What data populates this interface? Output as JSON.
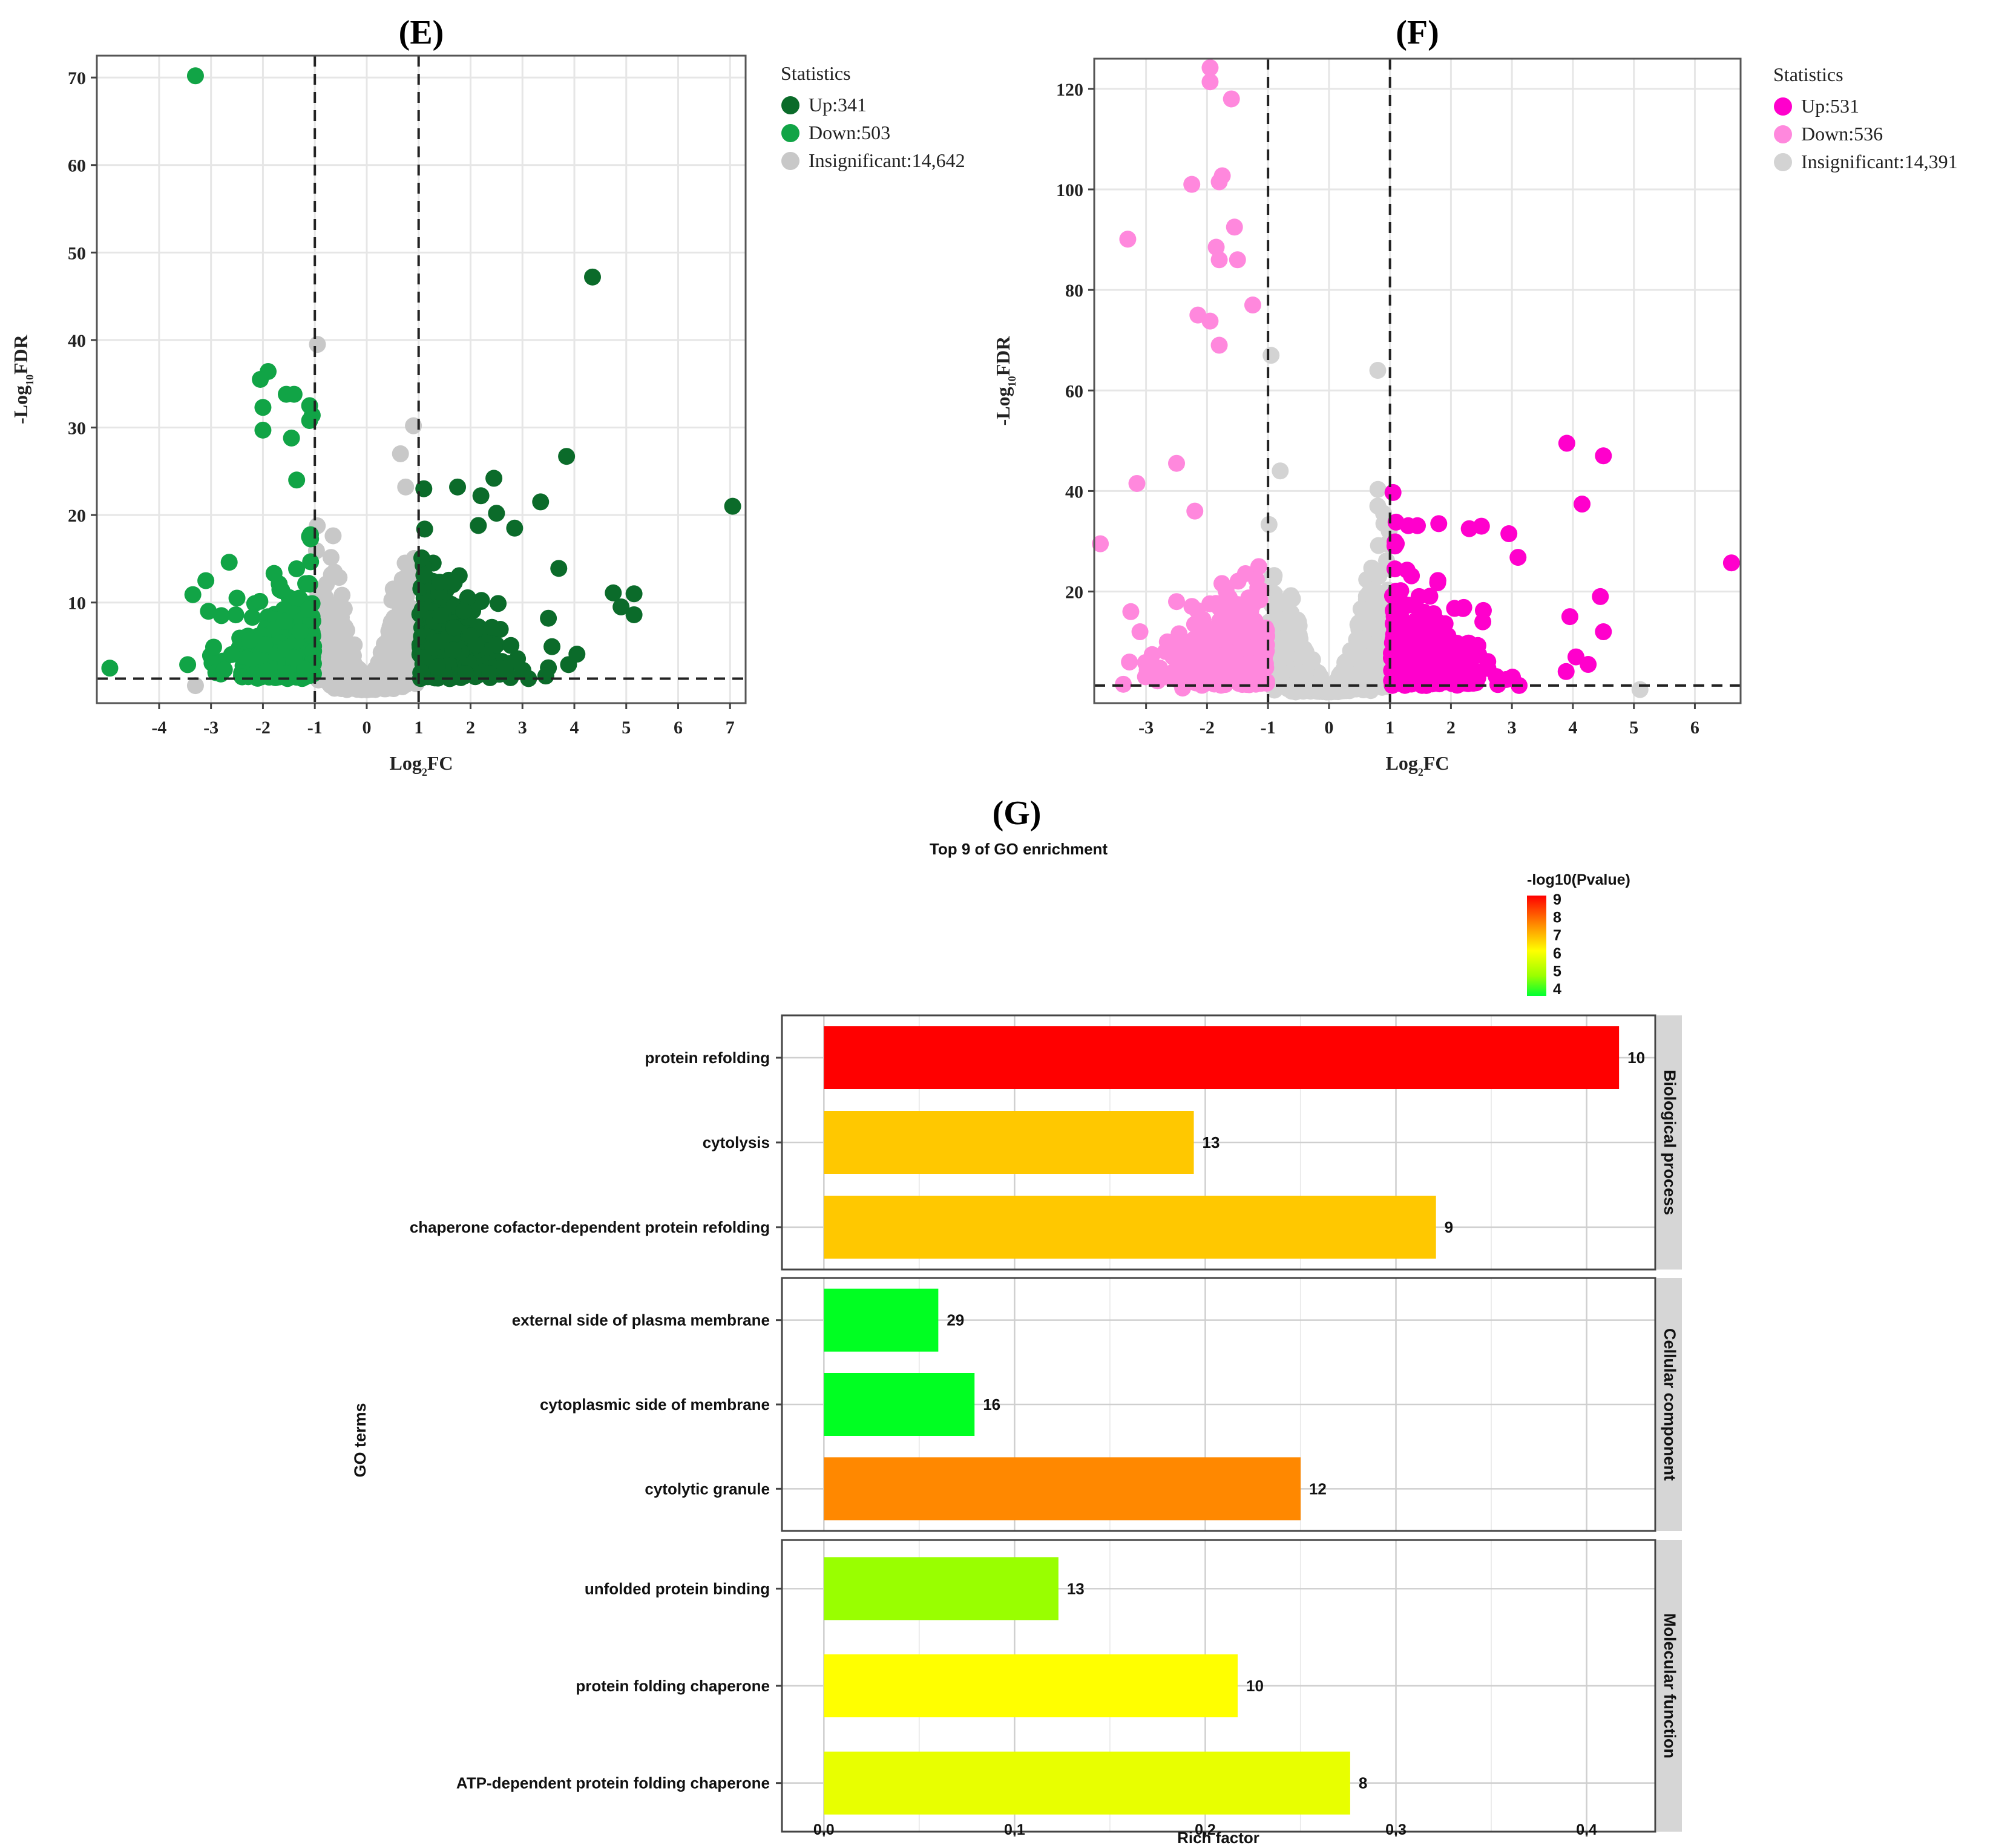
{
  "chart_data": [
    {
      "panel": "(E)",
      "type": "scatter",
      "xlabel": "Log2FC",
      "xlabel_main": "Log",
      "xlabel_sub": "2",
      "xlabel_tail": "FC",
      "ylabel": "-Log10FDR",
      "ylabel_main": "-Log",
      "ylabel_sub": "10",
      "ylabel_tail": "FDR",
      "xlim": [
        -5.2,
        7.3
      ],
      "ylim": [
        -1.5,
        72.5
      ],
      "x_ticks": [
        -4,
        -3,
        -2,
        -1,
        0,
        1,
        2,
        3,
        4,
        5,
        6,
        7
      ],
      "y_ticks": [
        10,
        20,
        30,
        40,
        50,
        60,
        70
      ],
      "fc_thresholds": [
        -1,
        1
      ],
      "fdr_threshold": 1.3,
      "legend_title": "Statistics",
      "legend": [
        {
          "label": "Up:341",
          "color": "#0b6b2a"
        },
        {
          "label": "Down:503",
          "color": "#11a446"
        },
        {
          "label": "Insignificant:14,642",
          "color": "#c8c8c8"
        }
      ],
      "series": [
        {
          "name": "Up",
          "count": 341,
          "color": "#0b6b2a",
          "highlighted_points": [
            [
              4.35,
              47.2
            ],
            [
              7.05,
              21
            ],
            [
              3.85,
              26.7
            ],
            [
              3.35,
              21.5
            ],
            [
              2.45,
              24.2
            ],
            [
              2.2,
              22.2
            ],
            [
              1.75,
              23.2
            ],
            [
              1.1,
              23
            ],
            [
              2.85,
              18.5
            ],
            [
              2.5,
              20.2
            ],
            [
              2.15,
              18.8
            ],
            [
              3.7,
              13.9
            ],
            [
              4.75,
              11.1
            ],
            [
              5.15,
              11
            ],
            [
              4.9,
              9.5
            ],
            [
              5.15,
              8.6
            ],
            [
              3.5,
              8.2
            ],
            [
              4.05,
              4.1
            ],
            [
              3.45,
              1.6
            ]
          ]
        },
        {
          "name": "Down",
          "count": 503,
          "color": "#11a446",
          "highlighted_points": [
            [
              -3.3,
              70.2
            ],
            [
              -4.95,
              2.5
            ],
            [
              -3.45,
              2.9
            ],
            [
              -1.9,
              36.4
            ],
            [
              -2.05,
              35.5
            ],
            [
              -1.55,
              33.8
            ],
            [
              -1.4,
              33.8
            ],
            [
              -2,
              32.3
            ],
            [
              -1.1,
              32.5
            ],
            [
              -1.05,
              31.4
            ],
            [
              -1.45,
              28.8
            ],
            [
              -2,
              29.7
            ],
            [
              -1.1,
              30.8
            ],
            [
              -2.65,
              14.6
            ],
            [
              -3.1,
              12.5
            ],
            [
              -3.35,
              10.9
            ],
            [
              -2.5,
              10.5
            ],
            [
              -2.8,
              8.5
            ],
            [
              -3.05,
              9
            ],
            [
              -2.95,
              4.9
            ],
            [
              -2.4,
              1.5
            ],
            [
              -2.25,
              5.7
            ],
            [
              -1.35,
              24
            ]
          ]
        },
        {
          "name": "Insignificant",
          "count": 14642,
          "color": "#c8c8c8",
          "highlighted_points": [
            [
              -0.95,
              39.5
            ],
            [
              0.9,
              30.2
            ],
            [
              0.65,
              27
            ],
            [
              0.75,
              23.2
            ],
            [
              -3.3,
              0.5
            ]
          ]
        }
      ]
    },
    {
      "panel": "(F)",
      "type": "scatter",
      "xlabel": "Log2FC",
      "xlabel_main": "Log",
      "xlabel_sub": "2",
      "xlabel_tail": "FC",
      "ylabel": "-Log10FDR",
      "ylabel_main": "-Log",
      "ylabel_sub": "10",
      "ylabel_tail": "FDR",
      "xlim": [
        -3.85,
        6.75
      ],
      "ylim": [
        -2.2,
        126
      ],
      "x_ticks": [
        -3,
        -2,
        -1,
        0,
        1,
        2,
        3,
        4,
        5,
        6
      ],
      "y_ticks": [
        20,
        40,
        60,
        80,
        100,
        120
      ],
      "fc_thresholds": [
        -1,
        1
      ],
      "fdr_threshold": 1.3,
      "legend_title": "Statistics",
      "legend": [
        {
          "label": "Up:531",
          "color": "#ff00cc"
        },
        {
          "label": "Down:536",
          "color": "#ff88dd"
        },
        {
          "label": "Insignificant:14,391",
          "color": "#d3d3d3"
        }
      ],
      "series": [
        {
          "name": "Up",
          "count": 531,
          "color": "#ff00cc",
          "highlighted_points": [
            [
              6.6,
              25.7
            ],
            [
              3.9,
              49.5
            ],
            [
              4.5,
              47
            ],
            [
              4.15,
              37.4
            ],
            [
              3.1,
              26.8
            ],
            [
              4.45,
              19
            ],
            [
              4.5,
              12
            ],
            [
              3.95,
              15
            ],
            [
              4.05,
              7
            ],
            [
              4.25,
              5.5
            ],
            [
              2.5,
              33
            ],
            [
              2.95,
              31.5
            ],
            [
              2.3,
              32.5
            ],
            [
              1.8,
              33.5
            ],
            [
              1.05,
              39.7
            ],
            [
              1.3,
              33.1
            ],
            [
              1.45,
              33.1
            ],
            [
              1.1,
              33.8
            ]
          ]
        },
        {
          "name": "Down",
          "count": 536,
          "color": "#ff88dd",
          "highlighted_points": [
            [
              -1.95,
              124.2
            ],
            [
              -1.95,
              121.4
            ],
            [
              -1.6,
              118
            ],
            [
              -1.75,
              102.7
            ],
            [
              -1.8,
              101.5
            ],
            [
              -2.25,
              101
            ],
            [
              -3.3,
              90.1
            ],
            [
              -1.55,
              92.5
            ],
            [
              -1.85,
              88.5
            ],
            [
              -1.5,
              86
            ],
            [
              -1.8,
              86
            ],
            [
              -1.25,
              77
            ],
            [
              -1.95,
              73.8
            ],
            [
              -2.15,
              75
            ],
            [
              -1.8,
              69
            ],
            [
              -3.75,
              29.5
            ],
            [
              -3.15,
              41.5
            ],
            [
              -3.25,
              16
            ],
            [
              -3.1,
              12
            ],
            [
              -2.5,
              45.5
            ],
            [
              -2.5,
              18
            ],
            [
              -2.2,
              36
            ],
            [
              -2.55,
              4
            ],
            [
              -2.4,
              0.8
            ]
          ]
        },
        {
          "name": "Insignificant",
          "count": 14391,
          "color": "#d3d3d3",
          "highlighted_points": [
            [
              -0.95,
              67
            ],
            [
              0.8,
              64
            ],
            [
              -0.8,
              44
            ],
            [
              0.8,
              37
            ],
            [
              0.9,
              33.5
            ],
            [
              5.1,
              0.5
            ]
          ]
        }
      ]
    },
    {
      "panel": "(G)",
      "type": "bar",
      "orientation": "horizontal",
      "title": "Top 9 of GO enrichment",
      "xlabel": "Rich factor",
      "ylabel": "GO terms",
      "xlim": [
        -0.022,
        0.436
      ],
      "x_ticks": [
        "0.0",
        "0.1",
        "0.2",
        "0.3",
        "0.4"
      ],
      "x_tick_values": [
        0,
        0.1,
        0.2,
        0.3,
        0.4
      ],
      "color_legend_title": "-log10(Pvalue)",
      "color_legend_ticks": [
        "9",
        "8",
        "7",
        "6",
        "5",
        "4"
      ],
      "color_range": [
        3.6,
        9.2
      ],
      "facets": [
        {
          "name": "Biological process",
          "terms": [
            {
              "label": "protein refolding",
              "rich_factor": 0.417,
              "count": "10",
              "neglog10p": 9.1,
              "color": "#ff0000"
            },
            {
              "label": "cytolysis",
              "rich_factor": 0.194,
              "count": "13",
              "neglog10p": 6.4,
              "color": "#ffc800"
            },
            {
              "label": "chaperone cofactor-dependent protein refolding",
              "rich_factor": 0.321,
              "count": "9",
              "neglog10p": 6.4,
              "color": "#ffc800"
            }
          ]
        },
        {
          "name": "Cellular component",
          "terms": [
            {
              "label": "external side of plasma membrane",
              "rich_factor": 0.06,
              "count": "29",
              "neglog10p": 3.7,
              "color": "#00ff22"
            },
            {
              "label": "cytoplasmic side of membrane",
              "rich_factor": 0.079,
              "count": "16",
              "neglog10p": 3.7,
              "color": "#00ff22"
            },
            {
              "label": "cytolytic granule",
              "rich_factor": 0.25,
              "count": "12",
              "neglog10p": 7.4,
              "color": "#ff8800"
            }
          ]
        },
        {
          "name": "Molecular function",
          "terms": [
            {
              "label": "unfolded protein binding",
              "rich_factor": 0.123,
              "count": "13",
              "neglog10p": 4.6,
              "color": "#99ff00"
            },
            {
              "label": "protein folding chaperone",
              "rich_factor": 0.217,
              "count": "10",
              "neglog10p": 5.8,
              "color": "#ffff00"
            },
            {
              "label": "ATP-dependent protein folding chaperone",
              "rich_factor": 0.276,
              "count": "8",
              "neglog10p": 5.6,
              "color": "#e8ff00"
            }
          ]
        }
      ]
    }
  ]
}
